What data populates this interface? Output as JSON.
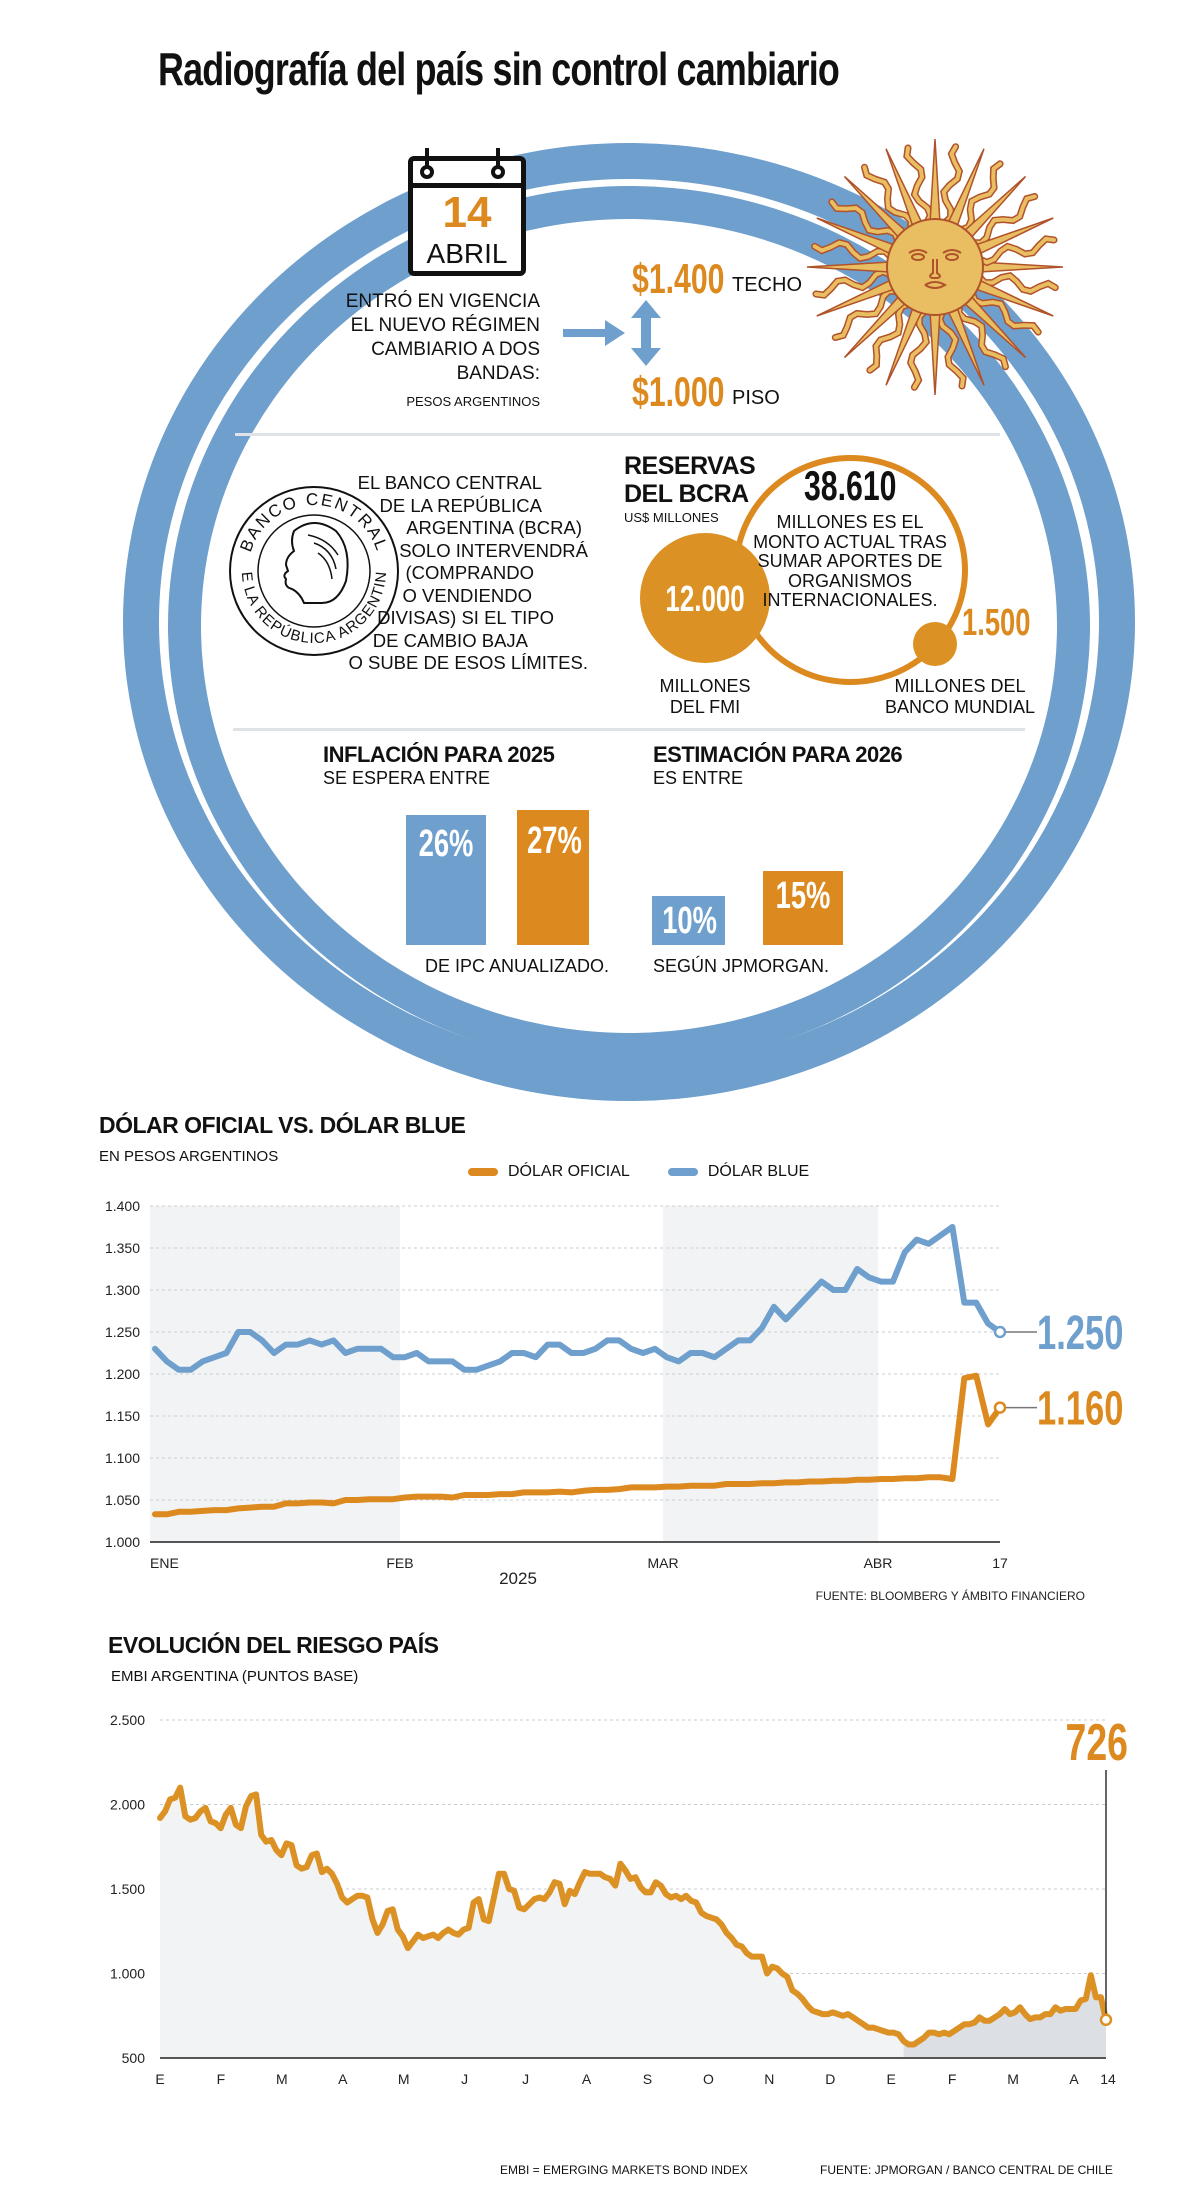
{
  "title": "Radiografía del país sin control cambiario",
  "calendar": {
    "day": "14",
    "month": "ABRIL"
  },
  "regime": {
    "lines": [
      "ENTRÓ EN VIGENCIA",
      "EL NUEVO RÉGIMEN",
      "CAMBIARIO A DOS",
      "BANDAS:"
    ],
    "unit": "PESOS ARGENTINOS",
    "ceiling_value": "$1.400",
    "ceiling_label": "TECHO",
    "floor_value": "$1.000",
    "floor_label": "PISO"
  },
  "bcra": {
    "seal_text_top": "BANCO CENTRAL",
    "seal_text_bottom": "DE LA REPÚBLICA ARGENTINA",
    "lines": [
      "EL BANCO CENTRAL",
      "DE LA REPÚBLICA",
      "ARGENTINA (BCRA)",
      "SOLO INTERVENDRÁ",
      "(COMPRANDO",
      "O VENDIENDO",
      "DIVISAS) SI EL TIPO",
      "DE CAMBIO BAJA",
      "O SUBE DE ESOS LÍMITES."
    ]
  },
  "reserves": {
    "title_1": "RESERVAS",
    "title_2": "DEL BCRA",
    "unit": "US$ MILLONES",
    "total": "38.610",
    "total_lines": [
      "MILLONES ES EL",
      "MONTO ACTUAL TRAS",
      "SUMAR APORTES DE",
      "ORGANISMOS",
      "INTERNACIONALES."
    ],
    "imf_value": "12.000",
    "imf_label_1": "MILLONES",
    "imf_label_2": "DEL FMI",
    "wb_value": "1.500",
    "wb_label_1": "MILLONES DEL",
    "wb_label_2": "BANCO MUNDIAL"
  },
  "inflation_2025": {
    "title": "INFLACIÓN PARA 2025",
    "subtitle": "SE ESPERA ENTRE",
    "low": 26,
    "low_label": "26%",
    "high": 27,
    "high_label": "27%",
    "footer": "DE IPC ANUALIZADO."
  },
  "estimate_2026": {
    "title": "ESTIMACIÓN PARA 2026",
    "subtitle": "ES ENTRE",
    "low": 10,
    "low_label": "10%",
    "high": 15,
    "high_label": "15%",
    "footer": "SEGÚN JPMORGAN."
  },
  "colors": {
    "orange": "#dc8a1f",
    "blue": "#6e9fcd",
    "band": "#f2f3f5",
    "sun": "#e9bd62",
    "sun_outline": "#b0522a"
  },
  "chart_data": [
    {
      "type": "line",
      "title": "DÓLAR OFICIAL VS. DÓLAR BLUE",
      "subtitle": "EN PESOS ARGENTINOS",
      "xlabel": "2025",
      "x_ticks": [
        "ENE",
        "FEB",
        "MAR",
        "ABR",
        "17"
      ],
      "ylim": [
        1000,
        1400
      ],
      "y_ticks": [
        "1.000",
        "1.050",
        "1.100",
        "1.150",
        "1.200",
        "1.250",
        "1.300",
        "1.350",
        "1.400"
      ],
      "grid": true,
      "legend_position": "top",
      "source": "FUENTE: BLOOMBERG Y ÁMBITO FINANCIERO",
      "series": [
        {
          "name": "DÓLAR OFICIAL",
          "color": "#dc8a1f",
          "end_label": "1.160",
          "values": [
            1033,
            1033,
            1036,
            1036,
            1037,
            1038,
            1038,
            1040,
            1041,
            1042,
            1042,
            1046,
            1046,
            1047,
            1047,
            1046,
            1050,
            1050,
            1051,
            1051,
            1051,
            1053,
            1054,
            1054,
            1054,
            1053,
            1056,
            1056,
            1056,
            1057,
            1057,
            1059,
            1059,
            1059,
            1060,
            1059,
            1061,
            1062,
            1062,
            1063,
            1065,
            1065,
            1065,
            1066,
            1066,
            1067,
            1067,
            1067,
            1069,
            1069,
            1069,
            1070,
            1070,
            1071,
            1071,
            1072,
            1072,
            1073,
            1073,
            1074,
            1074,
            1075,
            1075,
            1076,
            1076,
            1077,
            1077,
            1075,
            1195,
            1198,
            1140,
            1160
          ]
        },
        {
          "name": "DÓLAR BLUE",
          "color": "#6e9fcd",
          "end_label": "1.250",
          "values": [
            1230,
            1215,
            1205,
            1205,
            1215,
            1220,
            1225,
            1250,
            1250,
            1240,
            1225,
            1235,
            1235,
            1240,
            1235,
            1240,
            1225,
            1230,
            1230,
            1230,
            1220,
            1220,
            1225,
            1215,
            1215,
            1215,
            1205,
            1205,
            1210,
            1215,
            1225,
            1225,
            1220,
            1235,
            1235,
            1225,
            1225,
            1230,
            1240,
            1240,
            1230,
            1225,
            1230,
            1220,
            1215,
            1225,
            1225,
            1220,
            1230,
            1240,
            1240,
            1255,
            1280,
            1265,
            1280,
            1295,
            1310,
            1300,
            1300,
            1325,
            1315,
            1310,
            1310,
            1345,
            1360,
            1355,
            1365,
            1375,
            1285,
            1285,
            1260,
            1250
          ]
        }
      ]
    },
    {
      "type": "area",
      "title": "EVOLUCIÓN DEL RIESGO PAÍS",
      "subtitle": "EMBI ARGENTINA (PUNTOS BASE)",
      "x_ticks": [
        "E",
        "F",
        "M",
        "A",
        "M",
        "J",
        "J",
        "A",
        "S",
        "O",
        "N",
        "D",
        "E",
        "F",
        "M",
        "A",
        "14"
      ],
      "ylim": [
        500,
        2500
      ],
      "y_ticks": [
        "500",
        "1.000",
        "1.500",
        "2.000",
        "2.500"
      ],
      "grid": true,
      "end_label": "726",
      "footnote": "EMBI = EMERGING MARKETS BOND INDEX",
      "source": "FUENTE: JPMORGAN / BANCO CENTRAL DE CHILE",
      "values": [
        1920,
        1960,
        2030,
        2040,
        2100,
        1930,
        1910,
        1920,
        1960,
        1980,
        1900,
        1890,
        1860,
        1940,
        1980,
        1880,
        1860,
        1990,
        2050,
        2060,
        1820,
        1780,
        1790,
        1730,
        1700,
        1770,
        1760,
        1640,
        1620,
        1630,
        1700,
        1710,
        1600,
        1620,
        1590,
        1530,
        1450,
        1420,
        1440,
        1460,
        1460,
        1450,
        1320,
        1240,
        1290,
        1370,
        1380,
        1260,
        1220,
        1150,
        1190,
        1230,
        1210,
        1220,
        1230,
        1210,
        1240,
        1260,
        1240,
        1230,
        1260,
        1270,
        1420,
        1440,
        1320,
        1310,
        1450,
        1590,
        1590,
        1500,
        1490,
        1390,
        1380,
        1410,
        1440,
        1450,
        1440,
        1480,
        1540,
        1530,
        1410,
        1490,
        1470,
        1540,
        1600,
        1590,
        1590,
        1590,
        1570,
        1560,
        1520,
        1650,
        1610,
        1560,
        1570,
        1510,
        1480,
        1480,
        1540,
        1520,
        1470,
        1450,
        1460,
        1440,
        1460,
        1430,
        1420,
        1360,
        1340,
        1330,
        1320,
        1290,
        1240,
        1210,
        1170,
        1160,
        1120,
        1100,
        1100,
        1100,
        1000,
        1040,
        1030,
        1000,
        980,
        900,
        880,
        850,
        810,
        780,
        770,
        760,
        760,
        770,
        760,
        750,
        760,
        740,
        720,
        700,
        680,
        680,
        670,
        660,
        650,
        650,
        640,
        600,
        580,
        580,
        600,
        620,
        650,
        650,
        640,
        650,
        640,
        660,
        680,
        700,
        700,
        710,
        740,
        720,
        720,
        740,
        760,
        790,
        760,
        770,
        800,
        760,
        730,
        740,
        740,
        760,
        760,
        800,
        780,
        790,
        790,
        790,
        840,
        850,
        990,
        860,
        860,
        726
      ]
    }
  ]
}
